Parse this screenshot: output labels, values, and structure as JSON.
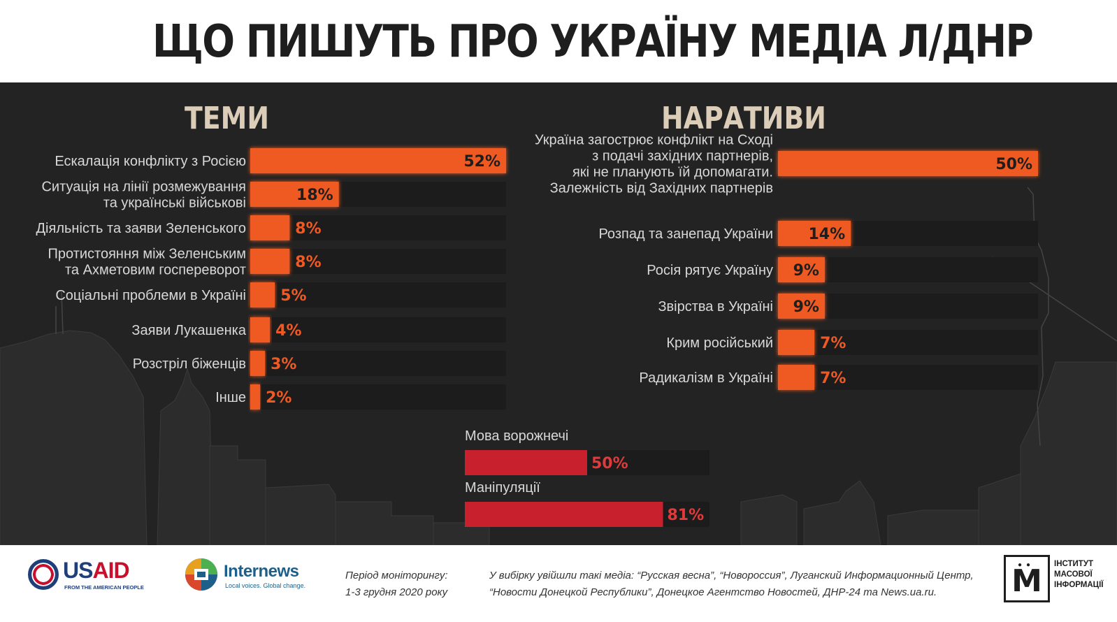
{
  "header": {
    "title": "ЩО ПИШУТЬ ПРО УКРАЇНУ МЕДІА Л/ДНР"
  },
  "sections": {
    "topics_title": "ТЕМИ",
    "narratives_title": "НАРАТИВИ"
  },
  "colors": {
    "bar": "#ef5a24",
    "bar_glow": "#ff7a3a",
    "bar_red": "#c8202c",
    "track": "#1c1c1c",
    "label": "#d8d8d8",
    "value_dark": "#1e1e1e",
    "value_light": "#ef5a24",
    "value_red": "#e03a3a",
    "section_title": "#dccdb8"
  },
  "chart_data": [
    {
      "type": "bar",
      "orientation": "horizontal",
      "title": "ТЕМИ",
      "categories": [
        "Ескалація конфлікту з Росією",
        "Ситуація на лінії розмежування та українські військові",
        "Діяльність та заяви Зеленського",
        "Протистояння між Зеленським та Ахметовим госпереворот",
        "Соціальні проблеми в Україні",
        "Заяви Лукашенка",
        "Розстріл біженців",
        "Інше"
      ],
      "label_lines": [
        [
          "Ескалація конфлікту з Росією"
        ],
        [
          "Ситуація на лінії розмежування",
          "та українські військові"
        ],
        [
          "Діяльність та заяви Зеленського"
        ],
        [
          "Протистояння між Зеленським",
          "та Ахметовим госпереворот"
        ],
        [
          "Соціальні проблеми в Україні"
        ],
        [
          "Заяви Лукашенка"
        ],
        [
          "Розстріл біженців"
        ],
        [
          "Інше"
        ]
      ],
      "values": [
        52,
        18,
        8,
        8,
        5,
        4,
        3,
        2
      ],
      "value_labels": [
        "52%",
        "18%",
        "8%",
        "8%",
        "5%",
        "4%",
        "3%",
        "2%"
      ],
      "xlim": [
        0,
        52
      ],
      "unit": "%"
    },
    {
      "type": "bar",
      "orientation": "horizontal",
      "title": "НАРАТИВИ",
      "categories": [
        "Україна загострює конфлікт на Сході з подачі західних партнерів, які не планують їй допомагати. Залежність від Західних партнерів",
        "Розпад та занепад України",
        "Росія рятує Україну",
        "Звірства в Україні",
        "Крим російський",
        "Радикалізм в Україні"
      ],
      "label_lines": [
        [
          "Україна загострює конфлікт на Сході",
          "з подачі західних партнерів,",
          "які не планують їй допомагати.",
          "Залежність від Західних партнерів"
        ],
        [
          "Розпад та занепад України"
        ],
        [
          "Росія рятує Україну"
        ],
        [
          "Звірства в Україні"
        ],
        [
          "Крим російський"
        ],
        [
          "Радикалізм в Україні"
        ]
      ],
      "values": [
        50,
        14,
        9,
        9,
        7,
        7
      ],
      "value_labels": [
        "50%",
        "14%",
        "9%",
        "9%",
        "7%",
        "7%"
      ],
      "xlim": [
        0,
        50
      ],
      "unit": "%"
    },
    {
      "type": "bar",
      "orientation": "horizontal",
      "categories": [
        "Мова ворожнечі",
        "Маніпуляції"
      ],
      "values": [
        50,
        81
      ],
      "value_labels": [
        "50%",
        "81%"
      ],
      "xlim": [
        0,
        100
      ],
      "unit": "%"
    }
  ],
  "footer": {
    "usaid_word_1": "US",
    "usaid_word_2": "AID",
    "usaid_tagline": "FROM THE AMERICAN PEOPLE",
    "internews_name": "Internews",
    "internews_tagline": "Local voices. Global change.",
    "period_line_1": "Період моніторингу:",
    "period_line_2": "1-3 грудня 2020 року",
    "sources_line_1": "У вибірку увійшли такі медіа: “Русская весна”, “Новороссия”, Луганский Информационный Центр,",
    "sources_line_2": "“Новости Донецкой Республики”, Донецкое Агентство Новостей, ДНР-24 та News.ua.ru.",
    "imi_letter": "M",
    "imi_line_1": "ІНСТИТУТ",
    "imi_line_2": "МАСОВОЇ",
    "imi_line_3": "ІНФОРМАЦІЇ"
  }
}
